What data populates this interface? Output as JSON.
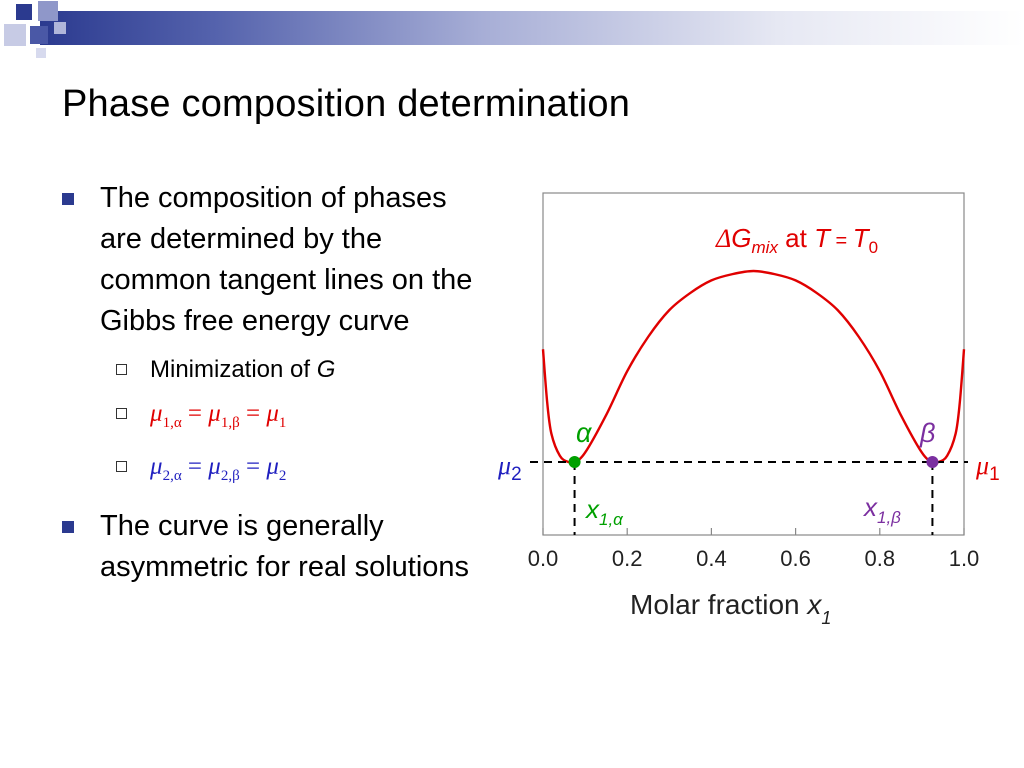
{
  "slide": {
    "title": "Phase composition determination",
    "bullets": [
      {
        "text": "The composition of phases are determined by the common tangent lines on the Gibbs free energy curve",
        "subitems": [
          {
            "text_prefix": "Minimization of ",
            "text_var": "G"
          },
          {
            "lhs": "μ",
            "lhs_sub": "1,α",
            "mid": "μ",
            "mid_sub": "1,β",
            "rhs": "μ",
            "rhs_sub": "1"
          },
          {
            "lhs": "μ",
            "lhs_sub": "2,α",
            "mid": "μ",
            "mid_sub": "2,β",
            "rhs": "μ",
            "rhs_sub": "2"
          }
        ]
      },
      {
        "text": "The curve is generally asymmetric for real solutions"
      }
    ]
  },
  "colors": {
    "curve": "#e00000",
    "alpha_phase": "#00a000",
    "beta_phase": "#7b2fa0",
    "mu2": "#1f1fbf",
    "mu1": "#e00000",
    "bullet": "#2b3a8f"
  },
  "chart_data": {
    "type": "line",
    "title_parts": {
      "delta": "Δ",
      "G": "G",
      "sub": "mix",
      "at": " at ",
      "T": "T",
      "eq": " = ",
      "T0": "T",
      "T0_sub": "0"
    },
    "xlabel": "Molar fraction ",
    "xlabel_var": "x",
    "xlabel_sub": "1",
    "xlim": [
      0.0,
      1.0
    ],
    "xticks": [
      "0.0",
      "0.2",
      "0.4",
      "0.6",
      "0.8",
      "1.0"
    ],
    "curve": {
      "x": [
        0.0,
        0.01,
        0.02,
        0.04,
        0.06,
        0.075,
        0.1,
        0.15,
        0.2,
        0.25,
        0.3,
        0.35,
        0.4,
        0.45,
        0.5,
        0.55,
        0.6,
        0.65,
        0.7,
        0.75,
        0.8,
        0.85,
        0.9,
        0.925,
        0.94,
        0.96,
        0.98,
        0.99,
        1.0
      ],
      "y": [
        0.72,
        0.38,
        0.18,
        0.04,
        0.0,
        0.0,
        0.06,
        0.3,
        0.58,
        0.8,
        0.97,
        1.08,
        1.16,
        1.2,
        1.22,
        1.2,
        1.16,
        1.08,
        0.97,
        0.8,
        0.58,
        0.3,
        0.06,
        0.0,
        0.0,
        0.04,
        0.18,
        0.38,
        0.72
      ]
    },
    "tangent_y": 0.0,
    "alpha_point": {
      "x": 0.075,
      "label": "α",
      "x_label_var": "x",
      "x_label_sub": "1,α"
    },
    "beta_point": {
      "x": 0.925,
      "label": "β",
      "x_label_var": "x",
      "x_label_sub": "1,β"
    },
    "mu_left": {
      "var": "μ",
      "sub": "2"
    },
    "mu_right": {
      "var": "μ",
      "sub": "1"
    },
    "grid": false
  }
}
